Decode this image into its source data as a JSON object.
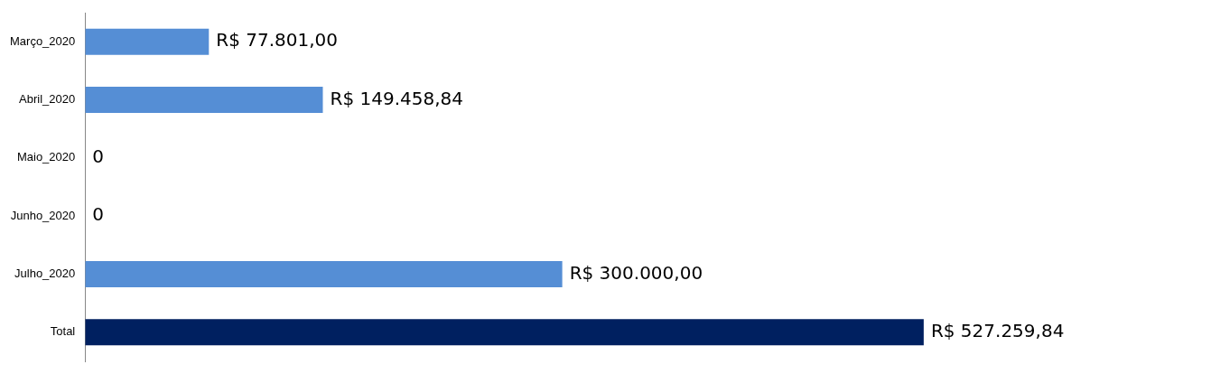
{
  "chart_data": {
    "type": "bar",
    "orientation": "horizontal",
    "categories": [
      "Março_2020",
      "Abril_2020",
      "Maio_2020",
      "Junho_2020",
      "Julho_2020",
      "Total"
    ],
    "values": [
      77801,
      149458.84,
      0,
      0,
      300000,
      527259.84
    ],
    "colors": [
      "#558ed5",
      "#558ed5",
      "#558ed5",
      "#558ed5",
      "#558ed5",
      "#002060"
    ],
    "value_labels": [
      "R$ 77.801,00",
      "R$ 149.458,84",
      "0",
      "0",
      "R$ 300.000,00",
      "R$ 527.259,84"
    ],
    "tick_labels": "y",
    "legend": false
  }
}
